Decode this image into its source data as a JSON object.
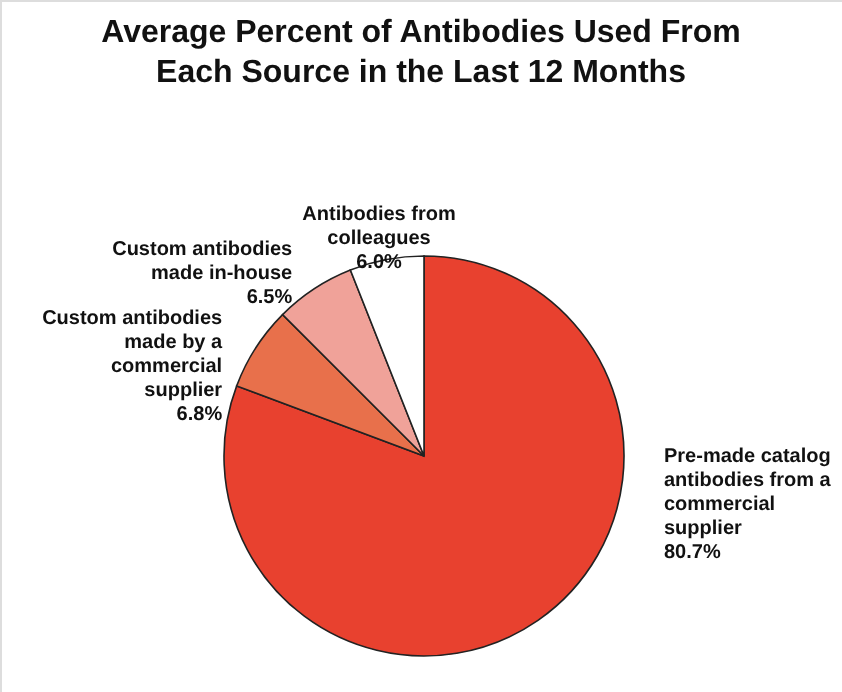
{
  "chart_data": {
    "type": "pie",
    "title": "Average Percent of Antibodies Used From Each Source in the Last 12 Months",
    "categories": [
      "Pre-made catalog antibodies from a commercial supplier",
      "Custom antibodies made by a commercial supplier",
      "Custom antibodies made in-house",
      "Antibodies from colleagues"
    ],
    "values": [
      80.7,
      6.8,
      6.5,
      6.0
    ],
    "value_labels": [
      "80.7%",
      "6.8%",
      "6.5%",
      "6.0%"
    ],
    "colors": [
      "#e8412f",
      "#e8704b",
      "#f0a299",
      "#ffffff"
    ]
  }
}
